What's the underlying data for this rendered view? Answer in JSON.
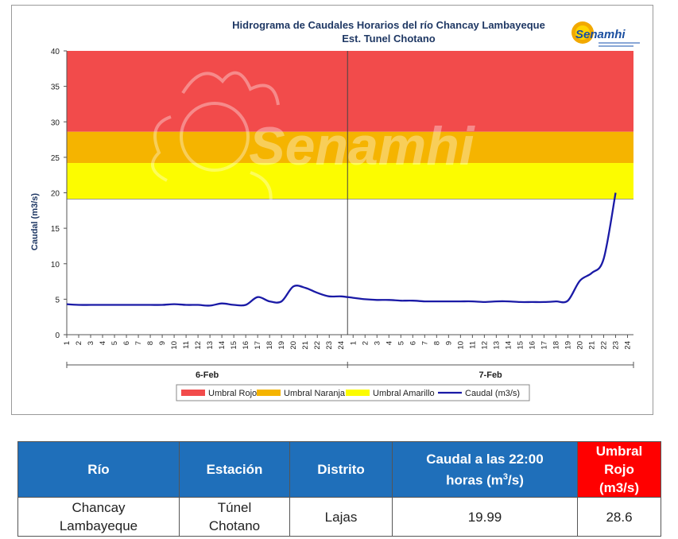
{
  "chart_data": {
    "type": "line",
    "title": "Hidrograma de Caudales Horarios del río Chancay Lambayeque",
    "subtitle": "Est. Tunel Chotano",
    "ylabel": "Caudal  (m3/s)",
    "ylim": [
      0,
      40
    ],
    "yticks": [
      0,
      5,
      10,
      15,
      20,
      25,
      30,
      35,
      40
    ],
    "hour_ticks": [
      "1",
      "2",
      "3",
      "4",
      "5",
      "6",
      "7",
      "8",
      "9",
      "10",
      "11",
      "12",
      "13",
      "14",
      "15",
      "16",
      "17",
      "18",
      "19",
      "20",
      "21",
      "22",
      "23",
      "24"
    ],
    "day_groups": [
      "6-Feb",
      "7-Feb"
    ],
    "thresholds": [
      {
        "name": "Umbral Rojo",
        "from": 28.6,
        "to": 40,
        "color": "#f24b4b"
      },
      {
        "name": "Umbral Naranja",
        "from": 24.2,
        "to": 28.6,
        "color": "#f5b400"
      },
      {
        "name": "Umbral Amarillo",
        "from": 19.1,
        "to": 24.2,
        "color": "#fcfc00"
      }
    ],
    "series": [
      {
        "name": "Caudal (m3/s)",
        "color": "#1a1aa6",
        "x": [
          "6-Feb 1",
          "6-Feb 2",
          "6-Feb 3",
          "6-Feb 4",
          "6-Feb 5",
          "6-Feb 6",
          "6-Feb 7",
          "6-Feb 8",
          "6-Feb 9",
          "6-Feb 10",
          "6-Feb 11",
          "6-Feb 12",
          "6-Feb 13",
          "6-Feb 14",
          "6-Feb 15",
          "6-Feb 16",
          "6-Feb 17",
          "6-Feb 18",
          "6-Feb 19",
          "6-Feb 20",
          "6-Feb 21",
          "6-Feb 22",
          "6-Feb 23",
          "6-Feb 24",
          "7-Feb 1",
          "7-Feb 2",
          "7-Feb 3",
          "7-Feb 4",
          "7-Feb 5",
          "7-Feb 6",
          "7-Feb 7",
          "7-Feb 8",
          "7-Feb 9",
          "7-Feb 10",
          "7-Feb 11",
          "7-Feb 12",
          "7-Feb 13",
          "7-Feb 14",
          "7-Feb 15",
          "7-Feb 16",
          "7-Feb 17",
          "7-Feb 18",
          "7-Feb 19",
          "7-Feb 20",
          "7-Feb 21",
          "7-Feb 22",
          "7-Feb 23"
        ],
        "values": [
          4.3,
          4.2,
          4.2,
          4.2,
          4.2,
          4.2,
          4.2,
          4.2,
          4.2,
          4.3,
          4.2,
          4.2,
          4.1,
          4.4,
          4.2,
          4.2,
          5.3,
          4.7,
          4.7,
          6.8,
          6.6,
          5.9,
          5.4,
          5.4,
          5.2,
          5.0,
          4.9,
          4.9,
          4.8,
          4.8,
          4.7,
          4.7,
          4.7,
          4.7,
          4.7,
          4.6,
          4.7,
          4.7,
          4.6,
          4.6,
          4.6,
          4.7,
          4.8,
          7.6,
          8.7,
          10.7,
          20.0
        ]
      }
    ],
    "legend_placement": "bottom-center",
    "grid": false
  },
  "watermark_text": "Senamhi",
  "logo_text": "Senamhi",
  "table": {
    "headers": {
      "rio": "Río",
      "estacion": "Estación",
      "distrito": "Distrito",
      "caudal_line1": "Caudal a las 22:00",
      "caudal_line2_pre": "horas (m",
      "caudal_sup": "3",
      "caudal_line2_post": "/s)",
      "umbral_line1": "Umbral Rojo",
      "umbral_line2": "(m3/s)"
    },
    "row": {
      "rio_line1": "Chancay",
      "rio_line2": "Lambayeque",
      "estacion_line1": "Túnel",
      "estacion_line2": "Chotano",
      "distrito": "Lajas",
      "caudal": "19.99",
      "umbral": "28.6"
    }
  }
}
